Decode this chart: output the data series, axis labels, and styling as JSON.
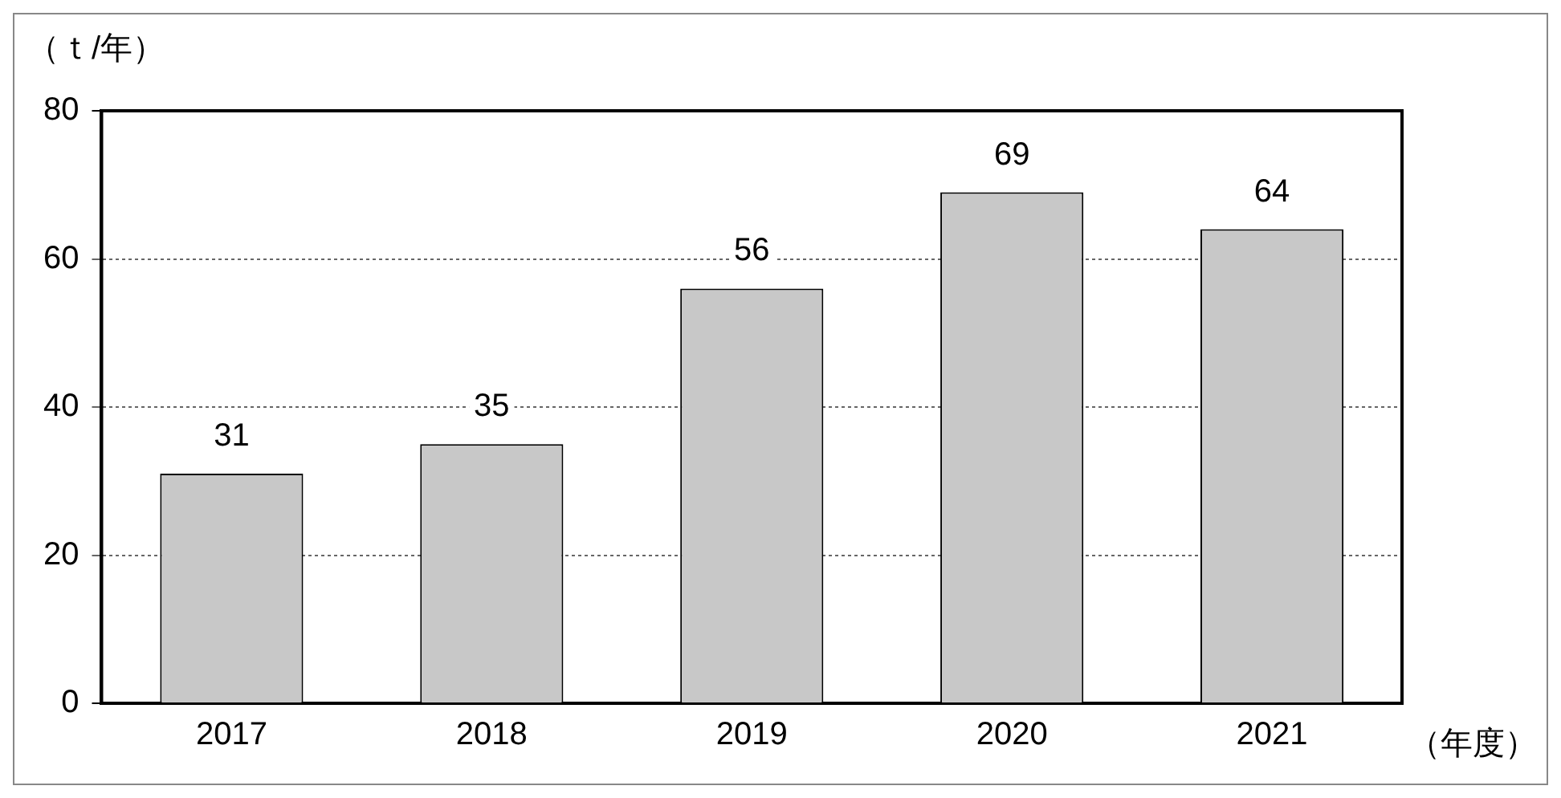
{
  "chart_data": {
    "type": "bar",
    "ylabel": "（ｔ/年）",
    "xlabel": "（年度）",
    "categories": [
      "2017",
      "2018",
      "2019",
      "2020",
      "2021"
    ],
    "values": [
      31,
      35,
      56,
      69,
      64
    ],
    "color": "#c8c8c8",
    "ylim": [
      0,
      80
    ],
    "yticks": [
      0,
      20,
      40,
      60,
      80
    ],
    "grid": "y",
    "data_labels": true
  }
}
